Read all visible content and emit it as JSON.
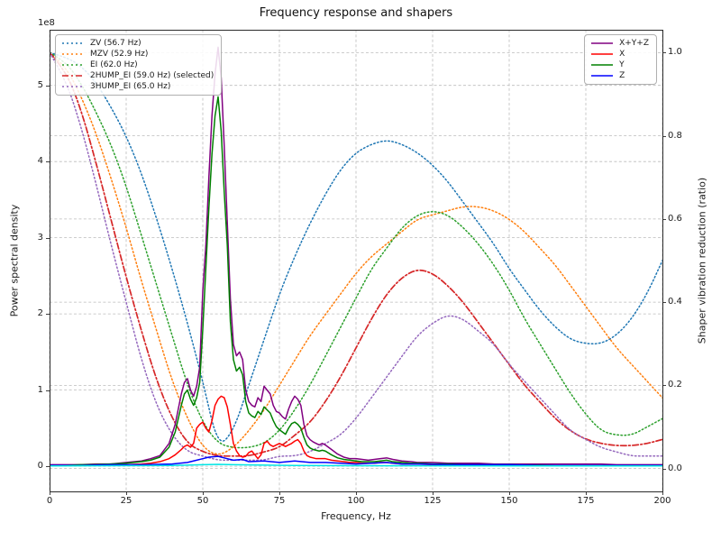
{
  "chart_data": {
    "type": "line",
    "title": "Frequency response and shapers",
    "xlabel": "Frequency, Hz",
    "ylabel": "Power spectral density",
    "ylabel2": "Shaper vibration reduction (ratio)",
    "y_offset_text": "1e8",
    "y_scale": "1e8",
    "grid": true,
    "xlim": [
      0,
      200
    ],
    "ylim": [
      -0.33,
      5.73
    ],
    "ylim2": [
      -0.055,
      1.055
    ],
    "x_ticks": [
      0,
      25,
      50,
      75,
      100,
      125,
      150,
      175,
      200
    ],
    "y_ticks": [
      0,
      1,
      2,
      3,
      4,
      5
    ],
    "y2_ticks": [
      0.0,
      0.2,
      0.4,
      0.6,
      0.8,
      1.0
    ],
    "legend_left_title": "shapers",
    "legend_right_title": "psd",
    "shared_x": {
      "shapers": [
        0,
        5,
        10,
        15,
        20,
        25,
        30,
        35,
        40,
        45,
        50,
        55,
        60,
        65,
        70,
        75,
        80,
        85,
        90,
        95,
        100,
        105,
        110,
        115,
        120,
        125,
        130,
        135,
        140,
        145,
        150,
        155,
        160,
        165,
        170,
        175,
        180,
        185,
        190,
        195,
        200
      ],
      "psd": [
        0,
        5,
        10,
        15,
        20,
        25,
        30,
        33,
        36,
        39,
        41,
        43,
        44,
        45,
        46,
        47,
        48,
        49,
        50,
        51,
        52,
        53,
        54,
        55,
        56,
        57,
        58,
        59,
        60,
        61,
        62,
        63,
        64,
        65,
        66,
        67,
        68,
        69,
        70,
        71,
        72,
        73,
        74,
        75,
        76,
        77,
        78,
        79,
        80,
        81,
        82,
        83,
        84,
        85,
        86,
        87,
        88,
        89,
        90,
        92,
        94,
        96,
        98,
        100,
        102,
        104,
        106,
        108,
        110,
        112,
        115,
        118,
        120,
        125,
        130,
        135,
        140,
        145,
        150,
        155,
        160,
        165,
        170,
        175,
        180,
        185,
        190,
        195,
        200
      ]
    },
    "series": [
      {
        "name": "ZV (56.7 Hz)",
        "legend": "shapers",
        "axis": "right",
        "color": "#1f77b4",
        "style": "dotted",
        "x_key": "shapers",
        "y": [
          1.0,
          0.99,
          0.97,
          0.93,
          0.87,
          0.8,
          0.71,
          0.6,
          0.48,
          0.35,
          0.21,
          0.05,
          0.09,
          0.2,
          0.31,
          0.42,
          0.51,
          0.59,
          0.66,
          0.72,
          0.76,
          0.78,
          0.79,
          0.78,
          0.76,
          0.73,
          0.69,
          0.64,
          0.59,
          0.54,
          0.48,
          0.43,
          0.38,
          0.34,
          0.31,
          0.3,
          0.3,
          0.32,
          0.36,
          0.42,
          0.5
        ]
      },
      {
        "name": "MZV (52.9 Hz)",
        "legend": "shapers",
        "axis": "right",
        "color": "#ff7f0e",
        "style": "dotted",
        "x_key": "shapers",
        "y": [
          1.0,
          0.97,
          0.9,
          0.81,
          0.7,
          0.58,
          0.45,
          0.33,
          0.21,
          0.12,
          0.05,
          0.03,
          0.05,
          0.09,
          0.14,
          0.2,
          0.26,
          0.32,
          0.37,
          0.42,
          0.47,
          0.51,
          0.54,
          0.57,
          0.6,
          0.61,
          0.62,
          0.63,
          0.63,
          0.62,
          0.6,
          0.57,
          0.53,
          0.49,
          0.44,
          0.39,
          0.34,
          0.29,
          0.25,
          0.21,
          0.17
        ]
      },
      {
        "name": "EI (62.0 Hz)",
        "legend": "shapers",
        "axis": "right",
        "color": "#2ca02c",
        "style": "dotted",
        "x_key": "shapers",
        "y": [
          1.0,
          0.98,
          0.93,
          0.86,
          0.78,
          0.68,
          0.56,
          0.44,
          0.32,
          0.2,
          0.11,
          0.06,
          0.05,
          0.05,
          0.06,
          0.09,
          0.14,
          0.2,
          0.27,
          0.34,
          0.41,
          0.48,
          0.53,
          0.58,
          0.61,
          0.62,
          0.61,
          0.58,
          0.54,
          0.49,
          0.43,
          0.36,
          0.3,
          0.24,
          0.18,
          0.13,
          0.09,
          0.08,
          0.08,
          0.1,
          0.12
        ]
      },
      {
        "name": "2HUMP_EI (59.0 Hz) (selected)",
        "legend": "shapers",
        "axis": "right",
        "color": "#d62728",
        "style": "dashdot",
        "x_key": "shapers",
        "y": [
          1.0,
          0.96,
          0.87,
          0.74,
          0.6,
          0.46,
          0.33,
          0.21,
          0.12,
          0.06,
          0.04,
          0.03,
          0.03,
          0.03,
          0.04,
          0.05,
          0.08,
          0.11,
          0.16,
          0.22,
          0.29,
          0.36,
          0.42,
          0.46,
          0.48,
          0.47,
          0.44,
          0.4,
          0.35,
          0.3,
          0.25,
          0.2,
          0.16,
          0.12,
          0.09,
          0.07,
          0.06,
          0.055,
          0.055,
          0.06,
          0.07
        ]
      },
      {
        "name": "3HUMP_EI (65.0 Hz)",
        "legend": "shapers",
        "axis": "right",
        "color": "#9467bd",
        "style": "dotted",
        "x_key": "shapers",
        "y": [
          1.0,
          0.94,
          0.83,
          0.69,
          0.54,
          0.4,
          0.26,
          0.15,
          0.08,
          0.04,
          0.03,
          0.02,
          0.02,
          0.02,
          0.02,
          0.03,
          0.03,
          0.04,
          0.06,
          0.08,
          0.12,
          0.17,
          0.22,
          0.27,
          0.32,
          0.35,
          0.37,
          0.36,
          0.33,
          0.3,
          0.25,
          0.21,
          0.17,
          0.13,
          0.09,
          0.07,
          0.05,
          0.04,
          0.03,
          0.03,
          0.03
        ]
      },
      {
        "name": "X+Y+Z",
        "legend": "psd",
        "axis": "left",
        "color": "#800080",
        "style": "solid",
        "x_key": "psd",
        "y": [
          0.02,
          0.02,
          0.02,
          0.03,
          0.03,
          0.05,
          0.07,
          0.1,
          0.14,
          0.3,
          0.55,
          0.95,
          1.1,
          1.15,
          1.0,
          0.92,
          1.05,
          1.3,
          2.3,
          2.9,
          3.8,
          4.6,
          5.15,
          5.5,
          5.1,
          4.2,
          3.2,
          2.2,
          1.6,
          1.45,
          1.5,
          1.4,
          1.0,
          0.85,
          0.8,
          0.78,
          0.9,
          0.85,
          1.05,
          1.0,
          0.95,
          0.8,
          0.72,
          0.7,
          0.65,
          0.62,
          0.75,
          0.85,
          0.92,
          0.88,
          0.8,
          0.55,
          0.4,
          0.35,
          0.32,
          0.3,
          0.28,
          0.3,
          0.28,
          0.22,
          0.16,
          0.12,
          0.1,
          0.1,
          0.09,
          0.08,
          0.09,
          0.1,
          0.11,
          0.09,
          0.07,
          0.06,
          0.05,
          0.05,
          0.04,
          0.04,
          0.04,
          0.03,
          0.03,
          0.03,
          0.03,
          0.03,
          0.03,
          0.03,
          0.03,
          0.02,
          0.02,
          0.02,
          0.02
        ]
      },
      {
        "name": "X",
        "legend": "psd",
        "axis": "left",
        "color": "#ff0000",
        "style": "solid",
        "x_key": "psd",
        "y": [
          0.01,
          0.01,
          0.01,
          0.02,
          0.02,
          0.02,
          0.03,
          0.04,
          0.06,
          0.1,
          0.15,
          0.22,
          0.26,
          0.28,
          0.25,
          0.3,
          0.5,
          0.55,
          0.58,
          0.5,
          0.45,
          0.6,
          0.8,
          0.88,
          0.92,
          0.9,
          0.78,
          0.55,
          0.3,
          0.2,
          0.14,
          0.12,
          0.13,
          0.18,
          0.2,
          0.15,
          0.1,
          0.15,
          0.3,
          0.33,
          0.28,
          0.26,
          0.28,
          0.3,
          0.28,
          0.26,
          0.28,
          0.3,
          0.33,
          0.35,
          0.3,
          0.2,
          0.14,
          0.12,
          0.11,
          0.1,
          0.1,
          0.1,
          0.1,
          0.08,
          0.07,
          0.06,
          0.05,
          0.05,
          0.04,
          0.04,
          0.04,
          0.05,
          0.05,
          0.04,
          0.03,
          0.03,
          0.03,
          0.02,
          0.02,
          0.02,
          0.02,
          0.015,
          0.015,
          0.01,
          0.01,
          0.01,
          0.01,
          0.01,
          0.01,
          0.01,
          0.01,
          0.01,
          0.01
        ]
      },
      {
        "name": "Y",
        "legend": "psd",
        "axis": "left",
        "color": "#008000",
        "style": "solid",
        "x_key": "psd",
        "y": [
          0.01,
          0.01,
          0.02,
          0.02,
          0.03,
          0.04,
          0.06,
          0.08,
          0.12,
          0.25,
          0.45,
          0.8,
          0.95,
          1.0,
          0.88,
          0.8,
          0.9,
          1.1,
          1.8,
          2.6,
          3.4,
          4.1,
          4.6,
          4.85,
          4.4,
          3.6,
          2.9,
          1.9,
          1.4,
          1.25,
          1.3,
          1.2,
          0.85,
          0.7,
          0.66,
          0.64,
          0.72,
          0.68,
          0.78,
          0.74,
          0.7,
          0.6,
          0.52,
          0.48,
          0.45,
          0.42,
          0.5,
          0.56,
          0.58,
          0.55,
          0.5,
          0.38,
          0.28,
          0.24,
          0.22,
          0.21,
          0.2,
          0.21,
          0.2,
          0.15,
          0.11,
          0.09,
          0.08,
          0.07,
          0.06,
          0.06,
          0.06,
          0.07,
          0.08,
          0.06,
          0.05,
          0.04,
          0.04,
          0.03,
          0.03,
          0.02,
          0.02,
          0.02,
          0.02,
          0.015,
          0.015,
          0.01,
          0.01,
          0.01,
          0.01,
          0.01,
          0.01,
          0.01,
          0.01
        ]
      },
      {
        "name": "Z",
        "legend": "psd",
        "axis": "left",
        "color": "#0000ff",
        "style": "solid",
        "x": [
          0,
          10,
          20,
          30,
          40,
          45,
          48,
          50,
          52,
          55,
          58,
          60,
          63,
          65,
          70,
          75,
          80,
          85,
          90,
          95,
          100,
          105,
          110,
          115,
          120,
          130,
          140,
          150,
          160,
          170,
          180,
          190,
          200
        ],
        "y": [
          0.01,
          0.01,
          0.02,
          0.02,
          0.03,
          0.05,
          0.08,
          0.1,
          0.12,
          0.13,
          0.1,
          0.08,
          0.09,
          0.06,
          0.07,
          0.05,
          0.07,
          0.05,
          0.05,
          0.04,
          0.03,
          0.04,
          0.05,
          0.03,
          0.03,
          0.02,
          0.02,
          0.02,
          0.01,
          0.01,
          0.01,
          0.01,
          0.01
        ]
      },
      {
        "name": "",
        "legend": "none",
        "axis": "left",
        "color": "#00e5e5",
        "style": "solid",
        "x": [
          0,
          40,
          50,
          55,
          60,
          80,
          100,
          150,
          200
        ],
        "y": [
          0.005,
          0.01,
          0.02,
          0.025,
          0.02,
          0.01,
          0.008,
          0.005,
          0.005
        ]
      }
    ]
  }
}
